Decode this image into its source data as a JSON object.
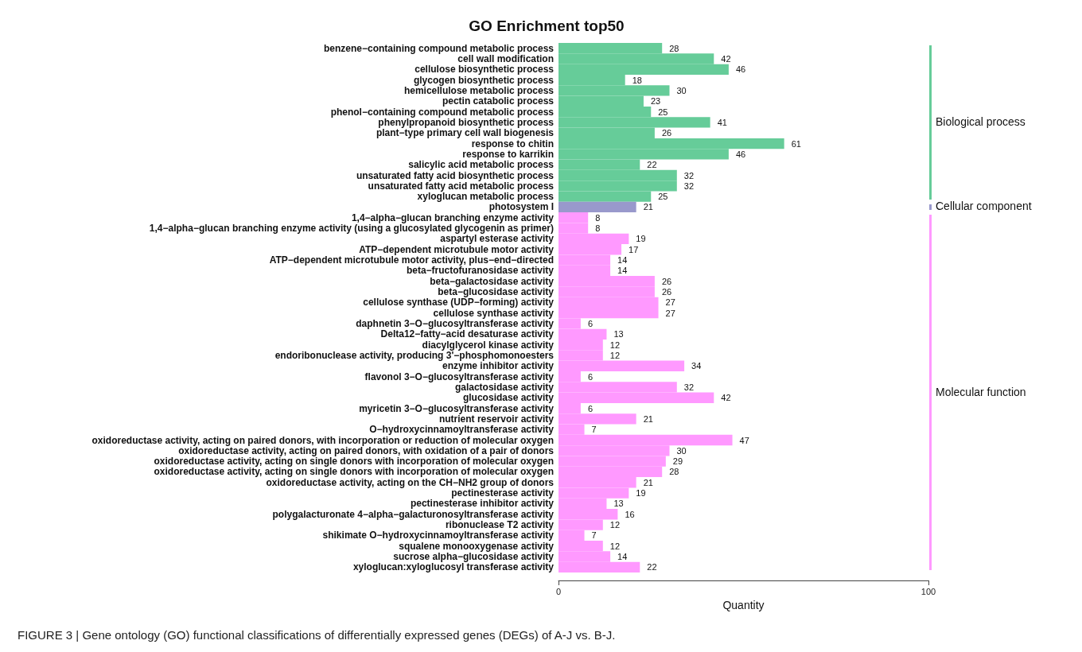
{
  "chart_data": {
    "type": "bar",
    "orientation": "horizontal",
    "stacked": true,
    "title": "GO Enrichment top50",
    "xlabel": "Quantity",
    "categories": [
      "benzene−containing compound metabolic process",
      "cell wall modification",
      "cellulose biosynthetic process",
      "glycogen biosynthetic process",
      "hemicellulose metabolic process",
      "pectin catabolic process",
      "phenol−containing compound metabolic process",
      "phenylpropanoid biosynthetic process",
      "plant−type primary cell wall biogenesis",
      "response to chitin",
      "response to karrikin",
      "salicylic acid metabolic process",
      "unsaturated fatty acid biosynthetic process",
      "unsaturated fatty acid metabolic process",
      "xyloglucan metabolic process",
      "photosystem I",
      "1,4−alpha−glucan branching enzyme activity",
      "1,4−alpha−glucan branching enzyme activity (using a glucosylated glycogenin as primer)",
      "aspartyl esterase activity",
      "ATP−dependent microtubule motor activity",
      "ATP−dependent microtubule motor activity, plus−end−directed",
      "beta−fructofuranosidase activity",
      "beta−galactosidase activity",
      "beta−glucosidase activity",
      "cellulose synthase (UDP−forming) activity",
      "cellulose synthase activity",
      "daphnetin 3−O−glucosyltransferase activity",
      "Delta12−fatty−acid desaturase activity",
      "diacylglycerol kinase activity",
      "endoribonuclease activity, producing 3'−phosphomonoesters",
      "enzyme inhibitor activity",
      "flavonol 3−O−glucosyltransferase activity",
      "galactosidase activity",
      "glucosidase activity",
      "myricetin 3−O−glucosyltransferase activity",
      "nutrient reservoir activity",
      "O−hydroxycinnamoyltransferase activity",
      "oxidoreductase activity, acting on paired donors, with incorporation or reduction of molecular oxygen",
      "oxidoreductase activity, acting on paired donors, with oxidation of a pair of donors",
      "oxidoreductase activity, acting on single donors with incorporation of molecular oxygen",
      "oxidoreductase activity, acting on single donors with incorporation of molecular oxygen",
      "oxidoreductase activity, acting on the CH−NH2 group of donors",
      "pectinesterase activity",
      "pectinesterase inhibitor activity",
      "polygalacturonate 4−alpha−galacturonosyltransferase activity",
      "ribonuclease T2 activity",
      "shikimate O−hydroxycinnamoyltransferase activity",
      "squalene monooxygenase activity",
      "sucrose alpha−glucosidase activity",
      "xyloglucan:xyloglucosyl transferase activity"
    ],
    "series": [
      {
        "name": "Biological process",
        "color": "#66cc99",
        "values": [
          28,
          42,
          46,
          18,
          30,
          23,
          25,
          41,
          26,
          61,
          46,
          22,
          32,
          32,
          25,
          null,
          null,
          null,
          null,
          null,
          null,
          null,
          null,
          null,
          null,
          null,
          null,
          null,
          null,
          null,
          null,
          null,
          null,
          null,
          null,
          null,
          null,
          null,
          null,
          null,
          null,
          null,
          null,
          null,
          null,
          null,
          null,
          null,
          null,
          null
        ]
      },
      {
        "name": "Cellular component",
        "color": "#9999cc",
        "values": [
          null,
          null,
          null,
          null,
          null,
          null,
          null,
          null,
          null,
          null,
          null,
          null,
          null,
          null,
          null,
          21,
          null,
          null,
          null,
          null,
          null,
          null,
          null,
          null,
          null,
          null,
          null,
          null,
          null,
          null,
          null,
          null,
          null,
          null,
          null,
          null,
          null,
          null,
          null,
          null,
          null,
          null,
          null,
          null,
          null,
          null,
          null,
          null,
          null,
          null
        ]
      },
      {
        "name": "Molecular function",
        "color": "#ff99ff",
        "values": [
          null,
          null,
          null,
          null,
          null,
          null,
          null,
          null,
          null,
          null,
          null,
          null,
          null,
          null,
          null,
          null,
          8,
          8,
          19,
          17,
          14,
          14,
          26,
          26,
          27,
          27,
          6,
          13,
          12,
          12,
          34,
          6,
          32,
          42,
          6,
          21,
          7,
          47,
          30,
          29,
          28,
          21,
          19,
          13,
          16,
          12,
          7,
          12,
          14,
          22
        ]
      }
    ],
    "xlim": [
      0,
      100
    ],
    "xticks": [
      0,
      100
    ],
    "data_labels": true,
    "grid": false,
    "legend": "right",
    "annotations": [
      "FIGURE 3 | Gene ontology (GO) functional classifications of differentially expressed genes (DEGs) of A-J vs. B-J."
    ]
  }
}
